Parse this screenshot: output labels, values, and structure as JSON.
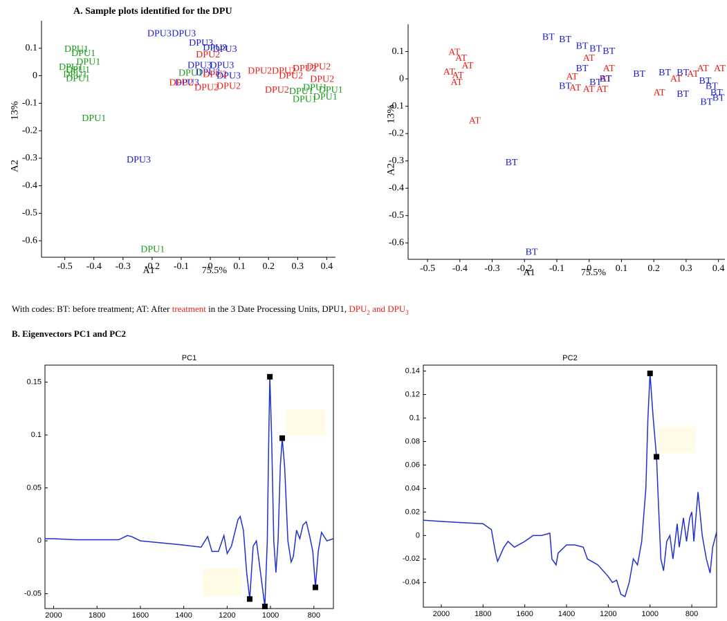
{
  "heading_a": "A.  Sample plots identified for the DPU",
  "caption": [
    "With codes: BT: before treatment; AT: After ",
    "treatment",
    " in the 3 Date Processing Units, DPU1, ",
    "DPU",
    "2",
    " and DPU",
    "3"
  ],
  "heading_b": "B. Eigenvectors PC1 and PC2",
  "chart_data": [
    {
      "type": "scatter",
      "xlabel": "A1",
      "xlabel2": "75.5%",
      "ylabel": "A2",
      "ylabel2": "13%",
      "xlim": [
        -0.58,
        0.43
      ],
      "ylim": [
        -0.66,
        0.2
      ],
      "xticks": [
        -0.5,
        -0.4,
        -0.3,
        -0.2,
        -0.1,
        0,
        0.1,
        0.2,
        0.3,
        0.4
      ],
      "yticks": [
        0.1,
        0,
        -0.1,
        -0.2,
        -0.3,
        -0.4,
        -0.5,
        -0.6
      ],
      "series": [
        {
          "label": "DPU1",
          "color": "#1c9a1c",
          "x": [
            -0.46,
            -0.436,
            -0.419,
            -0.479,
            -0.455,
            -0.464,
            -0.455,
            -0.4,
            -0.198,
            -0.068,
            0.312,
            0.36,
            0.414,
            0.395,
            0.324
          ],
          "values": [
            0.095,
            0.08,
            0.049,
            0.029,
            0.019,
            0.003,
            -0.012,
            -0.157,
            -0.633,
            0.008,
            -0.058,
            -0.045,
            -0.053,
            -0.078,
            -0.088
          ]
        },
        {
          "label": "DPU3",
          "color": "#1c1cd0",
          "x": [
            -0.175,
            -0.091,
            -0.032,
            0.016,
            0.05,
            -0.037,
            0.04,
            -0.008,
            0.063,
            -0.08,
            -0.246
          ],
          "values": [
            0.151,
            0.151,
            0.118,
            0.1,
            0.095,
            0.036,
            0.036,
            0.011,
            -0.002,
            -0.027,
            -0.307
          ]
        },
        {
          "label": "DPU2",
          "color": "#e8201a",
          "x": [
            -0.008,
            0.016,
            -0.1,
            -0.013,
            0.17,
            0.253,
            0.324,
            0.372,
            0.277,
            0.384,
            0.229,
            0.063
          ],
          "values": [
            0.075,
            0.003,
            -0.027,
            -0.045,
            0.016,
            0.016,
            0.024,
            0.031,
            -0.002,
            -0.015,
            -0.053,
            -0.04
          ]
        }
      ]
    },
    {
      "type": "scatter",
      "xlabel": "A1",
      "xlabel2": "75.5%",
      "ylabel": "A2",
      "ylabel2": "13%",
      "xlim": [
        -0.56,
        0.42
      ],
      "ylim": [
        -0.66,
        0.2
      ],
      "xticks": [
        -0.5,
        -0.4,
        -0.3,
        -0.2,
        -0.1,
        0,
        0.1,
        0.2,
        0.3,
        0.4
      ],
      "yticks": [
        0.1,
        0,
        -0.1,
        -0.2,
        -0.3,
        -0.4,
        -0.5,
        -0.6
      ],
      "series": [
        {
          "label": "AT",
          "color": "#e8201a",
          "x": [
            -0.417,
            -0.396,
            -0.376,
            -0.433,
            -0.406,
            -0.41,
            -0.354,
            -0.001,
            -0.053,
            -0.043,
            -0.001,
            0.061,
            0.051,
            0.04,
            0.217,
            0.269,
            0.321,
            0.352,
            0.404
          ],
          "values": [
            0.095,
            0.074,
            0.046,
            0.023,
            0.011,
            -0.015,
            -0.155,
            0.074,
            0.006,
            -0.035,
            -0.04,
            0.036,
            -0.002,
            -0.04,
            -0.053,
            -0.002,
            0.016,
            0.036,
            0.036
          ]
        },
        {
          "label": "BT",
          "color": "#1c1cd0",
          "x": [
            -0.126,
            -0.074,
            -0.022,
            0.02,
            0.061,
            -0.022,
            -0.074,
            0.02,
            0.051,
            0.155,
            0.234,
            0.29,
            0.29,
            0.359,
            0.379,
            0.394,
            0.363,
            0.4,
            -0.24,
            -0.178
          ],
          "values": [
            0.151,
            0.143,
            0.118,
            0.108,
            0.1,
            0.036,
            -0.028,
            -0.015,
            -0.002,
            0.016,
            0.021,
            0.021,
            -0.058,
            -0.01,
            -0.028,
            -0.053,
            -0.086,
            -0.071,
            -0.308,
            -0.635
          ]
        }
      ]
    },
    {
      "type": "line",
      "title": "PC1",
      "color": "#1f2fd0",
      "xlim": [
        2040,
        710
      ],
      "ylim": [
        -0.064,
        0.166
      ],
      "xticks": [
        2000,
        1800,
        1600,
        1400,
        1200,
        1000,
        800
      ],
      "yticks": [
        0.15,
        0.1,
        0.05,
        0,
        -0.05
      ],
      "x": [
        2040,
        2000,
        1900,
        1800,
        1700,
        1660,
        1640,
        1600,
        1500,
        1400,
        1320,
        1290,
        1270,
        1240,
        1215,
        1200,
        1180,
        1150,
        1140,
        1125,
        1110,
        1096,
        1080,
        1065,
        1026,
        1015,
        1008,
        1003,
        995,
        985,
        975,
        965,
        955,
        946,
        935,
        920,
        905,
        895,
        880,
        865,
        850,
        835,
        820,
        805,
        793,
        780,
        765,
        740,
        710
      ],
      "values": [
        0.002,
        0.002,
        0.001,
        0.001,
        0.001,
        0.005,
        0.004,
        0.0,
        -0.002,
        -0.004,
        -0.006,
        0.004,
        -0.01,
        -0.01,
        0.005,
        -0.012,
        -0.005,
        0.02,
        0.023,
        0.01,
        -0.03,
        -0.055,
        -0.005,
        0.0,
        -0.062,
        0.0,
        0.1,
        0.155,
        0.1,
        0.0,
        -0.03,
        0.0,
        0.07,
        0.097,
        0.07,
        0.0,
        -0.02,
        -0.015,
        0.01,
        0.002,
        0.015,
        0.018,
        0.005,
        -0.01,
        -0.044,
        -0.01,
        0.008,
        0.0,
        0.002
      ],
      "markers": {
        "x": [
          1096,
          1026,
          1003,
          946,
          793
        ],
        "values": [
          -0.055,
          -0.062,
          0.155,
          0.097,
          -0.044
        ]
      }
    },
    {
      "type": "line",
      "title": "PC2",
      "color": "#1f2fd0",
      "xlim": [
        2086,
        681
      ],
      "ylim": [
        -0.061,
        0.145
      ],
      "xticks": [
        2000,
        1800,
        1600,
        1400,
        1200,
        1000,
        800
      ],
      "yticks": [
        0.14,
        0.12,
        0.1,
        0.08,
        0.06,
        0.04,
        0.02,
        0,
        -0.02,
        -0.04
      ],
      "x": [
        2086,
        2000,
        1900,
        1800,
        1760,
        1740,
        1730,
        1700,
        1680,
        1650,
        1600,
        1560,
        1520,
        1480,
        1470,
        1450,
        1440,
        1400,
        1360,
        1320,
        1300,
        1250,
        1200,
        1180,
        1160,
        1140,
        1120,
        1100,
        1080,
        1060,
        1040,
        1020,
        1010,
        1000,
        985,
        969,
        958,
        948,
        935,
        920,
        905,
        890,
        870,
        860,
        840,
        825,
        810,
        800,
        790,
        770,
        750,
        730,
        712,
        700,
        681
      ],
      "values": [
        0.013,
        0.012,
        0.011,
        0.01,
        0.005,
        -0.015,
        -0.022,
        -0.01,
        -0.005,
        -0.01,
        -0.005,
        0.0,
        0.0,
        0.002,
        -0.02,
        -0.025,
        -0.015,
        -0.008,
        -0.008,
        -0.01,
        -0.02,
        -0.025,
        -0.035,
        -0.04,
        -0.038,
        -0.05,
        -0.052,
        -0.04,
        -0.02,
        -0.025,
        -0.005,
        0.04,
        0.1,
        0.138,
        0.1,
        0.067,
        0.02,
        -0.02,
        -0.03,
        -0.005,
        0.0,
        -0.02,
        0.01,
        -0.01,
        0.015,
        -0.005,
        0.015,
        0.02,
        -0.005,
        0.037,
        0.0,
        -0.02,
        -0.032,
        -0.01,
        0.003
      ],
      "markers": {
        "x": [
          1000,
          969
        ],
        "values": [
          0.138,
          0.067
        ]
      }
    }
  ]
}
